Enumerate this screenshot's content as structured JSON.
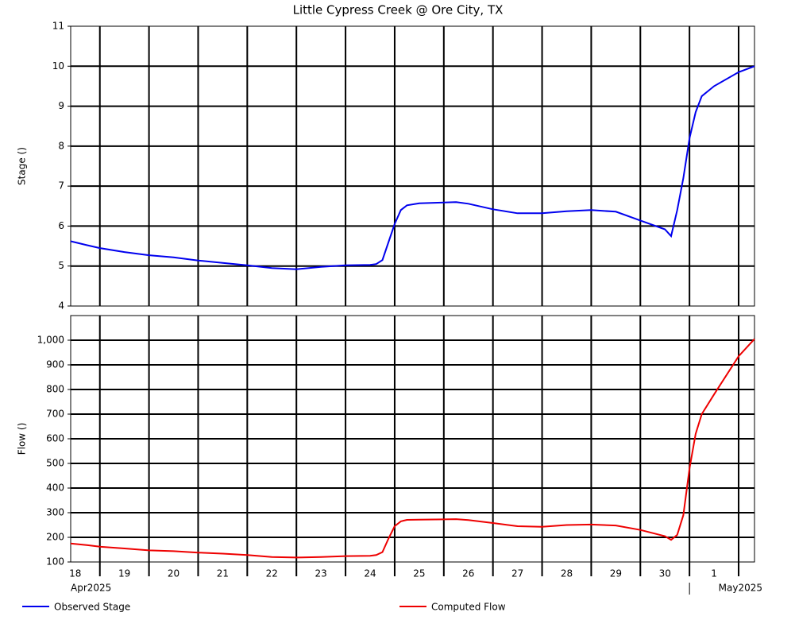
{
  "chart_data": {
    "type": "line",
    "title": "Little Cypress Creek @ Ore City, TX",
    "x": [
      "2025-04-18 09:45",
      "2025-04-18 18:00",
      "2025-04-19 00:00",
      "2025-04-19 12:00",
      "2025-04-20 00:00",
      "2025-04-20 12:00",
      "2025-04-21 00:00",
      "2025-04-21 12:00",
      "2025-04-22 00:00",
      "2025-04-22 12:00",
      "2025-04-23 00:00",
      "2025-04-23 12:00",
      "2025-04-24 00:00",
      "2025-04-24 12:00",
      "2025-04-24 15:00",
      "2025-04-24 18:00",
      "2025-04-24 21:00",
      "2025-04-25 00:00",
      "2025-04-25 03:00",
      "2025-04-25 06:00",
      "2025-04-25 12:00",
      "2025-04-26 00:00",
      "2025-04-26 06:00",
      "2025-04-26 12:00",
      "2025-04-27 00:00",
      "2025-04-27 12:00",
      "2025-04-28 00:00",
      "2025-04-28 12:00",
      "2025-04-29 00:00",
      "2025-04-29 12:00",
      "2025-04-30 00:00",
      "2025-04-30 12:00",
      "2025-04-30 15:00",
      "2025-04-30 18:00",
      "2025-04-30 21:00",
      "2025-05-01 00:00",
      "2025-05-01 03:00",
      "2025-05-01 06:00",
      "2025-05-01 12:00",
      "2025-05-02 00:00",
      "2025-05-02 07:45"
    ],
    "xlim": [
      "2025-04-18 09:45",
      "2025-05-02 07:45"
    ],
    "xticks": [
      {
        "value": "2025-04-18",
        "label": "18"
      },
      {
        "value": "2025-04-19",
        "label": "19"
      },
      {
        "value": "2025-04-20",
        "label": "20"
      },
      {
        "value": "2025-04-21",
        "label": "21"
      },
      {
        "value": "2025-04-22",
        "label": "22"
      },
      {
        "value": "2025-04-23",
        "label": "23"
      },
      {
        "value": "2025-04-24",
        "label": "24"
      },
      {
        "value": "2025-04-25",
        "label": "25"
      },
      {
        "value": "2025-04-26",
        "label": "26"
      },
      {
        "value": "2025-04-27",
        "label": "27"
      },
      {
        "value": "2025-04-28",
        "label": "28"
      },
      {
        "value": "2025-04-29",
        "label": "29"
      },
      {
        "value": "2025-04-30",
        "label": "30"
      },
      {
        "value": "2025-05-01",
        "label": "1"
      },
      {
        "value": "2025-05-02",
        "label": null
      }
    ],
    "month_labels": [
      {
        "value": "2025-04-18",
        "label": "Apr2025"
      },
      {
        "value": "2025-05-01",
        "label": "May2025"
      }
    ],
    "grid": true,
    "panels": [
      {
        "ylabel": "Stage ()",
        "ylim": [
          4,
          11
        ],
        "yticks": [
          4,
          5,
          6,
          7,
          8,
          9,
          10,
          11
        ],
        "series": [
          {
            "name": "Observed Stage",
            "color": "#0000ee",
            "values": [
              5.62,
              5.52,
              5.45,
              5.35,
              5.27,
              5.22,
              5.14,
              5.08,
              5.02,
              4.95,
              4.92,
              4.98,
              5.02,
              5.03,
              5.05,
              5.15,
              5.6,
              6.05,
              6.4,
              6.52,
              6.57,
              6.59,
              6.6,
              6.56,
              6.42,
              6.32,
              6.32,
              6.37,
              6.4,
              6.36,
              6.14,
              5.92,
              5.75,
              6.4,
              7.2,
              8.2,
              8.85,
              9.25,
              9.5,
              9.85,
              10.0
            ]
          }
        ]
      },
      {
        "ylabel": "Flow ()",
        "ylim": [
          100,
          1100
        ],
        "yticks": [
          100,
          200,
          300,
          400,
          500,
          600,
          700,
          800,
          900,
          {
            "value": 1000,
            "label": "1,000"
          }
        ],
        "series": [
          {
            "name": "Computed Flow",
            "color": "#ee0000",
            "values": [
              175,
              168,
              162,
              155,
              147,
              144,
              138,
              134,
              128,
              120,
              118,
              120,
              124,
              125,
              128,
              140,
              195,
              245,
              265,
              271,
              272,
              273,
              274,
              270,
              258,
              245,
              243,
              250,
              252,
              248,
              230,
              205,
              190,
              210,
              290,
              480,
              620,
              700,
              780,
              935,
              1005
            ]
          }
        ]
      }
    ]
  }
}
